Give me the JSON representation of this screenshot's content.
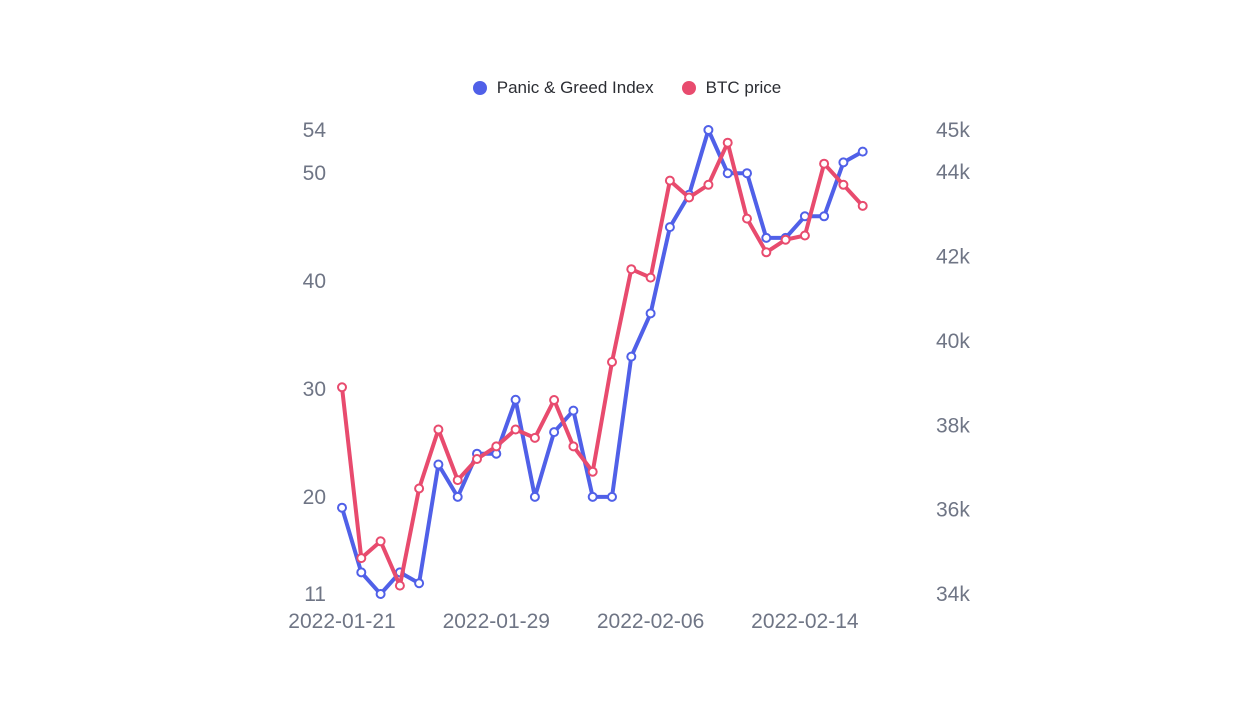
{
  "legend": {
    "items": [
      {
        "label": "Panic & Greed Index",
        "color": "#5060e8"
      },
      {
        "label": "BTC price",
        "color": "#e84b6e"
      }
    ],
    "placement": "top-center"
  },
  "chart_data": {
    "type": "line",
    "title": "",
    "xlabel": "",
    "ylabel_left": "",
    "ylabel_right": "",
    "grid": false,
    "x": [
      "2022-01-21",
      "2022-01-22",
      "2022-01-23",
      "2022-01-24",
      "2022-01-25",
      "2022-01-26",
      "2022-01-27",
      "2022-01-28",
      "2022-01-29",
      "2022-01-30",
      "2022-01-31",
      "2022-02-01",
      "2022-02-02",
      "2022-02-03",
      "2022-02-04",
      "2022-02-05",
      "2022-02-06",
      "2022-02-07",
      "2022-02-08",
      "2022-02-09",
      "2022-02-10",
      "2022-02-11",
      "2022-02-12",
      "2022-02-13",
      "2022-02-14",
      "2022-02-15",
      "2022-02-16",
      "2022-02-17",
      "2022-02-18"
    ],
    "x_tick_labels": [
      "2022-01-21",
      "2022-01-29",
      "2022-02-06",
      "2022-02-14"
    ],
    "y_left_ticks": [
      "11",
      "20",
      "30",
      "40",
      "50",
      "54"
    ],
    "y_left_range": [
      11,
      54
    ],
    "y_right_ticks": [
      "34k",
      "36k",
      "38k",
      "40k",
      "42k",
      "44k",
      "45k"
    ],
    "y_right_range": [
      34000,
      45000
    ],
    "series": [
      {
        "name": "Panic & Greed Index",
        "axis": "left",
        "color": "#5060e8",
        "values": [
          19,
          13,
          11,
          13,
          12,
          23,
          20,
          24,
          24,
          29,
          20,
          26,
          28,
          20,
          20,
          33,
          37,
          45,
          48,
          54,
          50,
          50,
          44,
          44,
          46,
          46,
          51,
          52,
          null
        ]
      },
      {
        "name": "BTC price",
        "axis": "right",
        "color": "#e84b6e",
        "values": [
          38900,
          34850,
          35250,
          34200,
          36500,
          37900,
          36700,
          37200,
          37500,
          37900,
          37700,
          38600,
          37500,
          36900,
          39500,
          41700,
          41500,
          43800,
          43400,
          43700,
          44700,
          42900,
          42100,
          42400,
          42500,
          44200,
          43700,
          43200,
          null
        ]
      }
    ]
  }
}
